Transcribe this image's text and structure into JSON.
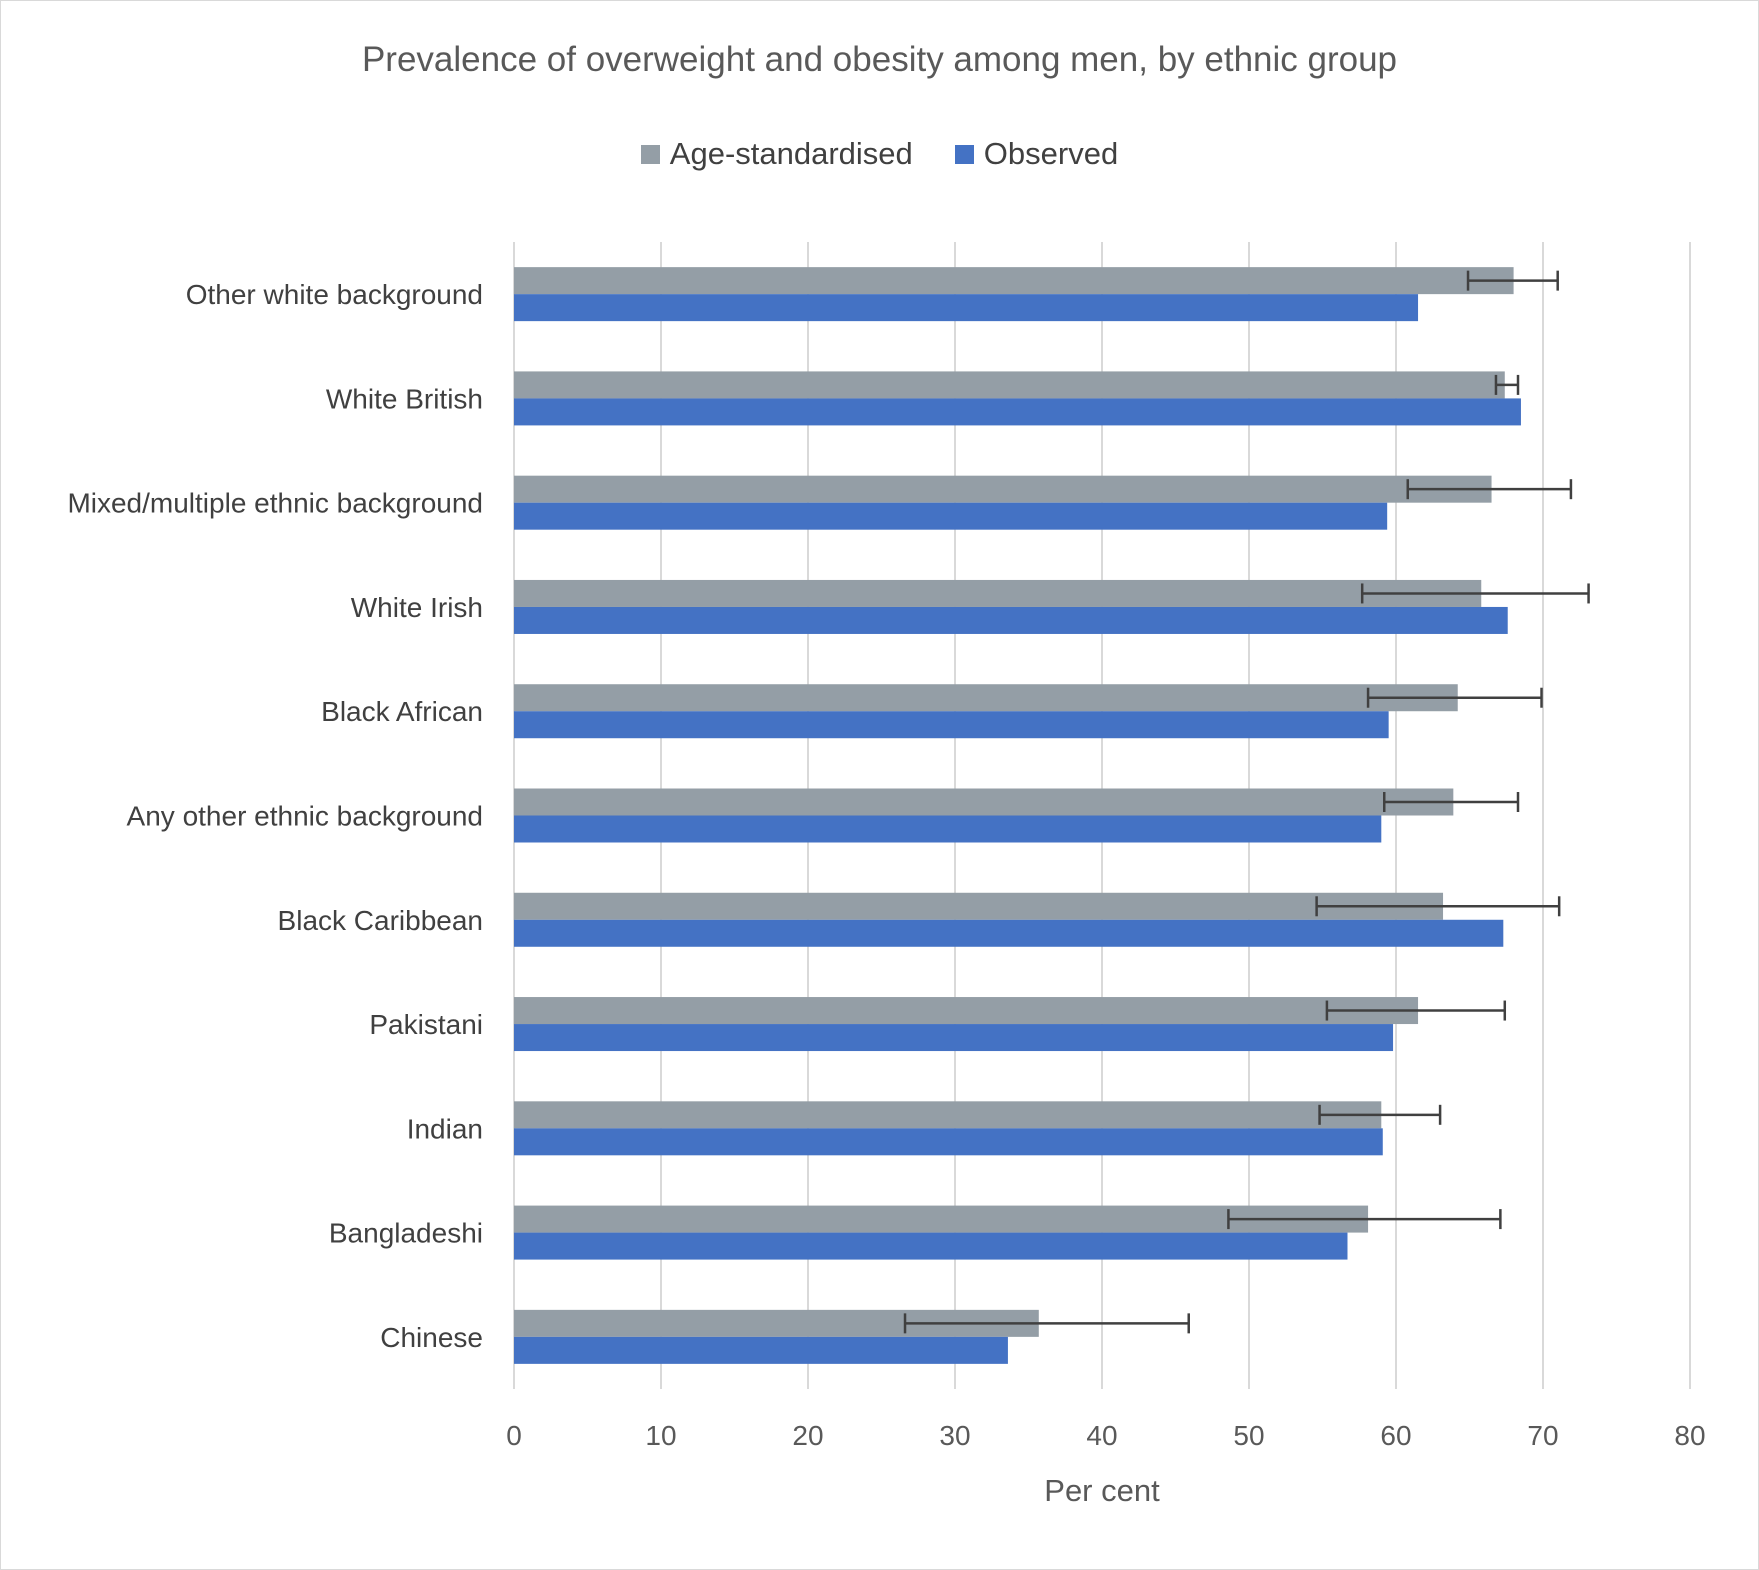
{
  "chart_data": {
    "type": "bar",
    "orientation": "horizontal",
    "title": "Prevalence of overweight and obesity among men, by ethnic group",
    "xlabel": "Per cent",
    "ylabel": "",
    "xlim": [
      0,
      80
    ],
    "xticks": [
      0,
      10,
      20,
      30,
      40,
      50,
      60,
      70,
      80
    ],
    "grid": true,
    "legend_position": "top",
    "categories": [
      "Other white background",
      "White British",
      "Mixed/multiple ethnic background",
      "White Irish",
      "Black African",
      "Any other ethnic background",
      "Black Caribbean",
      "Pakistani",
      "Indian",
      "Bangladeshi",
      "Chinese"
    ],
    "series": [
      {
        "name": "Age-standardised",
        "color": "#949ea6",
        "values": [
          68.0,
          67.4,
          66.5,
          65.8,
          64.2,
          63.9,
          63.2,
          61.5,
          59.0,
          58.1,
          35.7
        ],
        "error_low": [
          64.9,
          66.8,
          60.8,
          57.7,
          58.1,
          59.2,
          54.6,
          55.3,
          54.8,
          48.6,
          26.6
        ],
        "error_high": [
          71.0,
          68.3,
          71.9,
          73.1,
          69.9,
          68.3,
          71.1,
          67.4,
          63.0,
          67.1,
          45.9
        ]
      },
      {
        "name": "Observed",
        "color": "#4472c4",
        "values": [
          61.5,
          68.5,
          59.4,
          67.6,
          59.5,
          59.0,
          67.3,
          59.8,
          59.1,
          56.7,
          33.6
        ]
      }
    ]
  }
}
